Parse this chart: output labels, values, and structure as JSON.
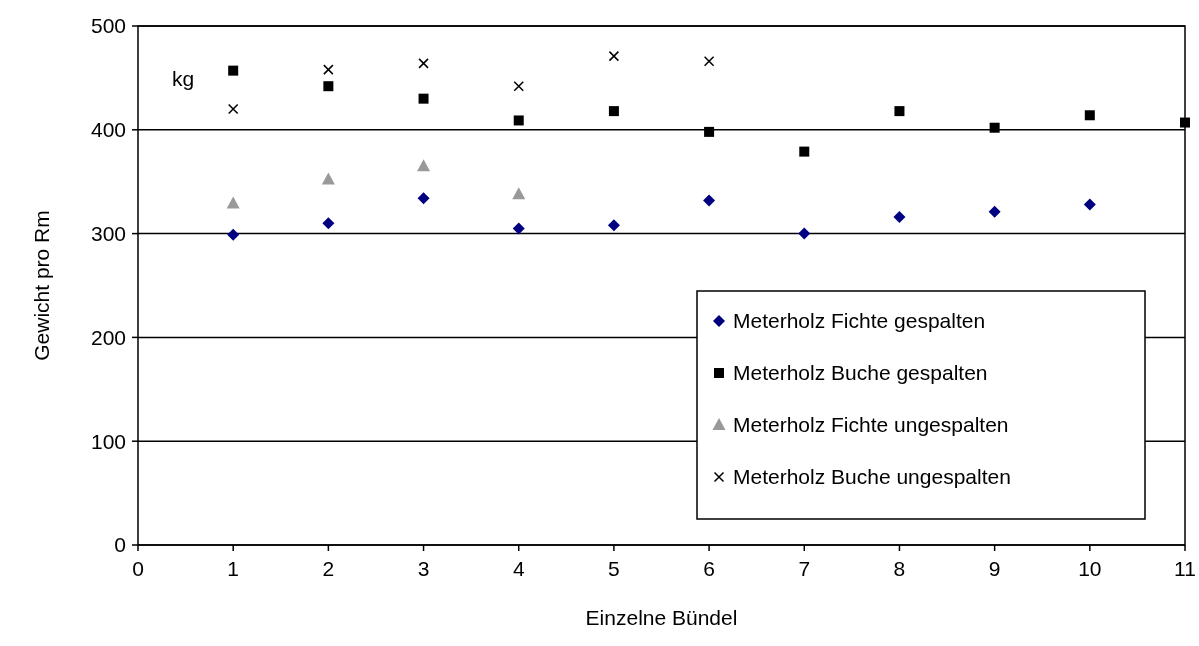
{
  "chart_data": {
    "type": "scatter",
    "xlabel": "Einzelne Bündel",
    "ylabel": "Gewicht pro Rm",
    "annotations": [
      "kg"
    ],
    "xlim": [
      0,
      11
    ],
    "xticks": [
      0,
      1,
      2,
      3,
      4,
      5,
      6,
      7,
      8,
      9,
      10,
      11
    ],
    "ylim": [
      0,
      500
    ],
    "yticks": [
      0,
      100,
      200,
      300,
      400,
      500
    ],
    "grid": "y",
    "legend": "bottom right",
    "series": [
      {
        "name": "Meterholz Fichte gespalten",
        "color": "#000080",
        "marker": "diamond",
        "x": [
          1,
          2,
          3,
          4,
          5,
          6,
          7,
          8,
          9,
          10
        ],
        "values": [
          299,
          310,
          334,
          305,
          308,
          332,
          300,
          316,
          321,
          328
        ]
      },
      {
        "name": "Meterholz Buche gespalten",
        "color": "#000000",
        "marker": "square",
        "x": [
          1,
          2,
          3,
          4,
          5,
          6,
          7,
          8,
          9,
          10,
          11
        ],
        "values": [
          457,
          442,
          430,
          409,
          418,
          398,
          379,
          418,
          402,
          414,
          407
        ]
      },
      {
        "name": "Meterholz Fichte ungespalten",
        "color": "#999999",
        "marker": "triangle",
        "x": [
          1,
          2,
          3,
          4
        ],
        "values": [
          329,
          352,
          365,
          338
        ]
      },
      {
        "name": "Meterholz Buche ungespalten",
        "color": "#000000",
        "marker": "cross",
        "x": [
          1,
          2,
          3,
          4,
          5,
          6
        ],
        "values": [
          420,
          458,
          464,
          442,
          471,
          466
        ]
      }
    ]
  }
}
